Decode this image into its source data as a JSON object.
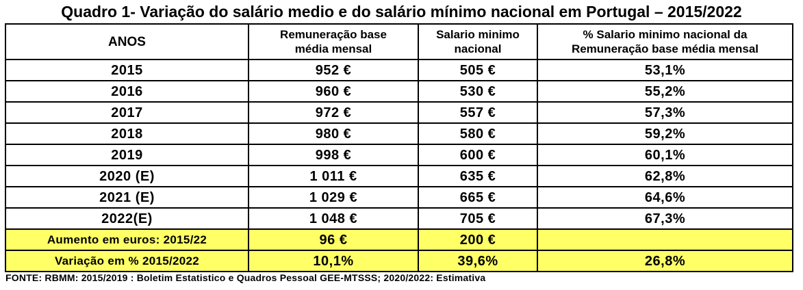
{
  "title": "Quadro 1- Variação do salário medio e do salário mínimo nacional em Portugal – 2015/2022",
  "headers": {
    "col1": "ANOS",
    "col2_line1": "Remuneração base",
    "col2_line2": "média mensal",
    "col3_line1": "Salario minimo",
    "col3_line2": "nacional",
    "col4_line1": "% Salario minimo nacional da",
    "col4_line2": "Remuneração base média mensal"
  },
  "rows": [
    {
      "year": "2015",
      "rbm": "952 €",
      "smn": "505 €",
      "pct": "53,1%"
    },
    {
      "year": "2016",
      "rbm": "960 €",
      "smn": "530 €",
      "pct": "55,2%"
    },
    {
      "year": "2017",
      "rbm": "972 €",
      "smn": "557 €",
      "pct": "57,3%"
    },
    {
      "year": "2018",
      "rbm": "980 €",
      "smn": "580 €",
      "pct": "59,2%"
    },
    {
      "year": "2019",
      "rbm": "998 €",
      "smn": "600 €",
      "pct": "60,1%"
    },
    {
      "year": "2020 (E)",
      "rbm": "1 011 €",
      "smn": "635 €",
      "pct": "62,8%"
    },
    {
      "year": "2021 (E)",
      "rbm": "1 029 €",
      "smn": "665 €",
      "pct": "64,6%"
    },
    {
      "year": "2022(E)",
      "rbm": "1 048 €",
      "smn": "705 €",
      "pct": "67,3%"
    }
  ],
  "summary": {
    "increase": {
      "label": "Aumento em euros: 2015/22",
      "rbm": "96 €",
      "smn": "200 €",
      "pct": ""
    },
    "variation": {
      "label": "Variação em % 2015/2022",
      "rbm": "10,1%",
      "smn": "39,6%",
      "pct": "26,8%"
    }
  },
  "highlight_color": "#ffff66",
  "source": "FONTE: RBMM: 2015/2019 : Boletim Estatistico e Quadros Pessoal GEE-MTSSS; 2020/2022: Estimativa"
}
